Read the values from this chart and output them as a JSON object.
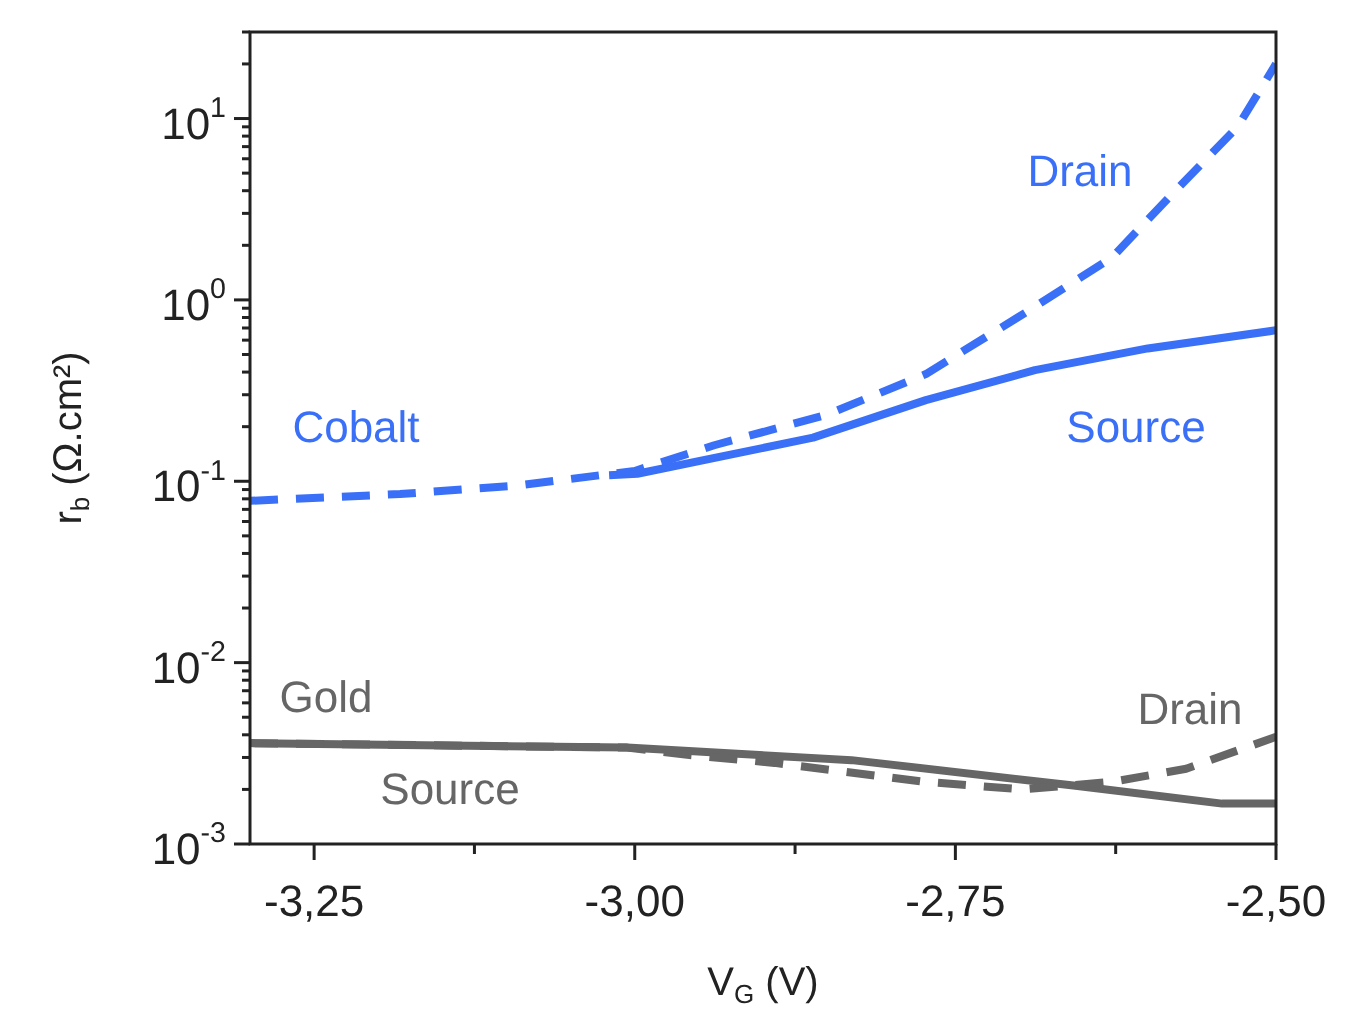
{
  "chart_data": {
    "type": "line",
    "xlabel": "V$_{G}$ (V)",
    "ylabel": "r$_{b}$ (Ω.cm²)",
    "log": "y",
    "xlim": [
      -3.3,
      -2.5
    ],
    "xticks": [
      {
        "value": -3.25,
        "label": "-3,25"
      },
      {
        "value": -3.125,
        "label": null
      },
      {
        "value": -3.0,
        "label": "-3,00"
      },
      {
        "value": -2.875,
        "label": null
      },
      {
        "value": -2.75,
        "label": "-2,75"
      },
      {
        "value": -2.625,
        "label": null
      },
      {
        "value": -2.5,
        "label": "-2,50"
      }
    ],
    "ylim": [
      0.001,
      30
    ],
    "yticks": [
      {
        "value": 0.001,
        "label": "10$^{-3}$"
      },
      {
        "value": 0.002,
        "label": null
      },
      {
        "value": 0.003,
        "label": null
      },
      {
        "value": 0.004,
        "label": null
      },
      {
        "value": 0.005,
        "label": null
      },
      {
        "value": 0.006,
        "label": null
      },
      {
        "value": 0.007,
        "label": null
      },
      {
        "value": 0.008,
        "label": null
      },
      {
        "value": 0.009,
        "label": null
      },
      {
        "value": 0.01,
        "label": "10$^{-2}$"
      },
      {
        "value": 0.02,
        "label": null
      },
      {
        "value": 0.03,
        "label": null
      },
      {
        "value": 0.04,
        "label": null
      },
      {
        "value": 0.05,
        "label": null
      },
      {
        "value": 0.06,
        "label": null
      },
      {
        "value": 0.07,
        "label": null
      },
      {
        "value": 0.08,
        "label": null
      },
      {
        "value": 0.09,
        "label": null
      },
      {
        "value": 0.1,
        "label": "10$^{-1}$"
      },
      {
        "value": 0.2,
        "label": null
      },
      {
        "value": 0.3,
        "label": null
      },
      {
        "value": 0.4,
        "label": null
      },
      {
        "value": 0.5,
        "label": null
      },
      {
        "value": 0.6,
        "label": null
      },
      {
        "value": 0.7,
        "label": null
      },
      {
        "value": 0.8,
        "label": null
      },
      {
        "value": 0.9,
        "label": null
      },
      {
        "value": 1,
        "label": "10$^{0}$"
      },
      {
        "value": 2,
        "label": null
      },
      {
        "value": 3,
        "label": null
      },
      {
        "value": 4,
        "label": null
      },
      {
        "value": 5,
        "label": null
      },
      {
        "value": 6,
        "label": null
      },
      {
        "value": 7,
        "label": null
      },
      {
        "value": 8,
        "label": null
      },
      {
        "value": 9,
        "label": null
      },
      {
        "value": 10,
        "label": "10$^{1}$"
      },
      {
        "value": 20,
        "label": null
      },
      {
        "value": 30,
        "label": null
      }
    ],
    "grid": false,
    "legend": false,
    "marker": "none",
    "series": [
      {
        "name": "Drain",
        "color": "#3a6ff7",
        "line_style": "dashed",
        "x": [
          -3.3,
          -3.183,
          -3.09,
          -3.0,
          -2.938,
          -2.85,
          -2.773,
          -2.692,
          -2.628,
          -2.583,
          -2.53,
          -2.5
        ],
        "values": [
          0.078,
          0.085,
          0.095,
          0.114,
          0.158,
          0.233,
          0.39,
          0.88,
          1.71,
          3.7,
          9.0,
          20
        ]
      },
      {
        "name": "Source",
        "color": "#3a6ff7",
        "line_style": "solid",
        "x": [
          -3.02,
          -2.998,
          -2.861,
          -2.773,
          -2.688,
          -2.6,
          -2.5
        ],
        "values": [
          0.108,
          0.11,
          0.174,
          0.28,
          0.41,
          0.54,
          0.68
        ]
      },
      {
        "name": "Drain",
        "color": "#666666",
        "line_style": "dashed",
        "x": [
          -3.3,
          -3.006,
          -2.959,
          -2.891,
          -2.773,
          -2.698,
          -2.628,
          -2.57,
          -2.5
        ],
        "values": [
          0.0036,
          0.0034,
          0.0031,
          0.0028,
          0.0022,
          0.002,
          0.0022,
          0.0026,
          0.0039
        ]
      },
      {
        "name": "Source",
        "color": "#666666",
        "line_style": "solid",
        "x": [
          -3.3,
          -3.006,
          -2.831,
          -2.658,
          -2.542,
          -2.5
        ],
        "values": [
          0.0036,
          0.0034,
          0.0029,
          0.0021,
          0.00167,
          0.00167
        ]
      }
    ],
    "annotations": [
      "Cobalt",
      "Gold"
    ]
  }
}
